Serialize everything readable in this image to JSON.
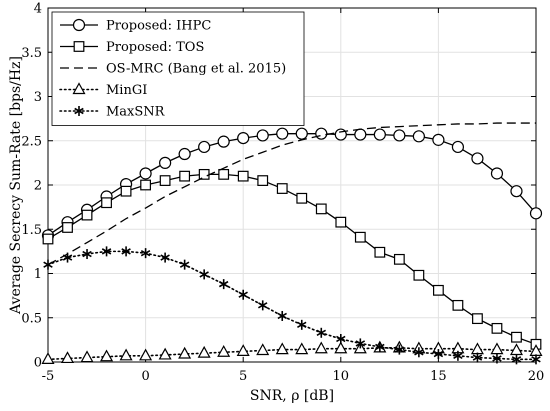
{
  "chart_data": {
    "type": "line",
    "xlabel": "SNR, ρ [dB]",
    "ylabel": "Average Secrecy Sum-Rate [bps/Hz]",
    "xlim": [
      -5,
      20
    ],
    "ylim": [
      0,
      4
    ],
    "xticks": [
      -5,
      0,
      5,
      10,
      15,
      20
    ],
    "yticks": [
      0,
      0.5,
      1,
      1.5,
      2,
      2.5,
      3,
      3.5,
      4
    ],
    "xtick_labels": [
      "-5",
      "0",
      "5",
      "10",
      "15",
      "20"
    ],
    "ytick_labels": [
      "0",
      "0.5",
      "1",
      "1.5",
      "2",
      "2.5",
      "3",
      "3.5",
      "4"
    ],
    "grid": true,
    "legend_position": "top-left",
    "x": [
      -5,
      -4,
      -3,
      -2,
      -1,
      0,
      1,
      2,
      3,
      4,
      5,
      6,
      7,
      8,
      9,
      10,
      11,
      12,
      13,
      14,
      15,
      16,
      17,
      18,
      19,
      20
    ],
    "series": [
      {
        "name": "Proposed: IHPC",
        "line": "solid",
        "marker": "circle",
        "values": [
          1.43,
          1.58,
          1.72,
          1.87,
          2.01,
          2.13,
          2.25,
          2.35,
          2.43,
          2.49,
          2.53,
          2.56,
          2.58,
          2.58,
          2.58,
          2.57,
          2.57,
          2.57,
          2.56,
          2.55,
          2.51,
          2.43,
          2.3,
          2.13,
          1.93,
          1.68
        ]
      },
      {
        "name": "Proposed: TOS",
        "line": "solid",
        "marker": "square",
        "values": [
          1.39,
          1.52,
          1.66,
          1.8,
          1.93,
          2.0,
          2.05,
          2.1,
          2.12,
          2.12,
          2.1,
          2.05,
          1.96,
          1.85,
          1.73,
          1.58,
          1.41,
          1.24,
          1.16,
          0.98,
          0.81,
          0.64,
          0.49,
          0.38,
          0.28,
          0.2
        ]
      },
      {
        "name": "OS-MRC (Bang et al. 2015)",
        "line": "dashed",
        "marker": "none",
        "values": [
          1.1,
          1.22,
          1.35,
          1.48,
          1.62,
          1.74,
          1.87,
          1.98,
          2.09,
          2.19,
          2.29,
          2.37,
          2.45,
          2.51,
          2.56,
          2.6,
          2.63,
          2.65,
          2.66,
          2.67,
          2.68,
          2.69,
          2.69,
          2.7,
          2.7,
          2.7
        ]
      },
      {
        "name": "MinGI",
        "line": "dotted",
        "marker": "triangle",
        "values": [
          0.03,
          0.04,
          0.05,
          0.06,
          0.07,
          0.07,
          0.08,
          0.09,
          0.1,
          0.11,
          0.12,
          0.13,
          0.14,
          0.14,
          0.15,
          0.15,
          0.15,
          0.16,
          0.16,
          0.15,
          0.15,
          0.15,
          0.14,
          0.14,
          0.13,
          0.12
        ]
      },
      {
        "name": "MaxSNR",
        "line": "dotted",
        "marker": "asterisk",
        "values": [
          1.1,
          1.18,
          1.22,
          1.25,
          1.25,
          1.23,
          1.18,
          1.1,
          0.99,
          0.88,
          0.76,
          0.64,
          0.52,
          0.42,
          0.33,
          0.26,
          0.21,
          0.17,
          0.14,
          0.11,
          0.09,
          0.07,
          0.05,
          0.04,
          0.03,
          0.03
        ]
      }
    ]
  }
}
